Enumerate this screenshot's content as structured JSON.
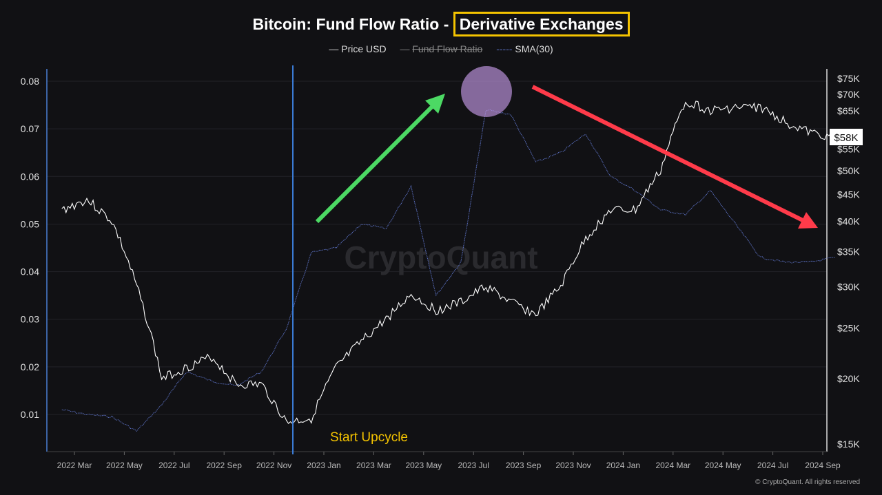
{
  "chart_data": {
    "type": "line",
    "title": "Bitcoin: Fund Flow Ratio -",
    "title_highlight": "Derivative Exchanges",
    "legend": [
      {
        "label": "Price USD",
        "style": "solid",
        "color": "#ffffff",
        "visible": true
      },
      {
        "label": "Fund Flow Ratio",
        "style": "solid",
        "color": "#888888",
        "visible": false
      },
      {
        "label": "SMA(30)",
        "style": "dotted",
        "color": "#5a6fc0",
        "visible": true
      }
    ],
    "legend_placement": "top-center",
    "x_ticks": [
      "2022 Mar",
      "2022 May",
      "2022 Jul",
      "2022 Sep",
      "2022 Nov",
      "2023 Jan",
      "2023 Mar",
      "2023 May",
      "2023 Jul",
      "2023 Sep",
      "2023 Nov",
      "2024 Jan",
      "2024 Mar",
      "2024 May",
      "2024 Jul",
      "2024 Sep"
    ],
    "y_left": {
      "ticks": [
        "0.01",
        "0.02",
        "0.03",
        "0.04",
        "0.05",
        "0.06",
        "0.07",
        "0.08"
      ],
      "values": [
        0.01,
        0.02,
        0.03,
        0.04,
        0.05,
        0.06,
        0.07,
        0.08
      ]
    },
    "y_right": {
      "scale": "log",
      "ticks": [
        "$15K",
        "$20K",
        "$25K",
        "$30K",
        "$35K",
        "$40K",
        "$45K",
        "$50K",
        "$55K",
        "$65K",
        "$70K",
        "$75K"
      ],
      "values": [
        15000,
        20000,
        25000,
        30000,
        35000,
        40000,
        45000,
        50000,
        55000,
        65000,
        70000,
        75000
      ],
      "current_label": "$58K"
    },
    "grid": true,
    "x": [
      "2022-02",
      "2022-03",
      "2022-04",
      "2022-05",
      "2022-06",
      "2022-07",
      "2022-08",
      "2022-09",
      "2022-10",
      "2022-11",
      "2022-12",
      "2023-01",
      "2023-02",
      "2023-03",
      "2023-04",
      "2023-05",
      "2023-06",
      "2023-07",
      "2023-08",
      "2023-09",
      "2023-10",
      "2023-11",
      "2023-12",
      "2024-01",
      "2024-02",
      "2024-03",
      "2024-04",
      "2024-05",
      "2024-06",
      "2024-07",
      "2024-08",
      "2024-09"
    ],
    "series": [
      {
        "name": "Price USD",
        "axis": "right",
        "values": [
          42000,
          44000,
          40000,
          30000,
          20000,
          21000,
          22000,
          19500,
          19500,
          16500,
          16800,
          21000,
          23500,
          26000,
          29000,
          27000,
          28000,
          30000,
          28000,
          26500,
          30000,
          37000,
          42000,
          42000,
          50000,
          68000,
          65000,
          66000,
          66000,
          62000,
          59000,
          58000
        ]
      },
      {
        "name": "SMA(30)",
        "axis": "left",
        "values": [
          0.011,
          0.01,
          0.0095,
          0.0065,
          0.012,
          0.019,
          0.017,
          0.016,
          0.019,
          0.028,
          0.044,
          0.045,
          0.05,
          0.049,
          0.058,
          0.035,
          0.042,
          0.074,
          0.073,
          0.063,
          0.065,
          0.069,
          0.06,
          0.057,
          0.053,
          0.052,
          0.057,
          0.05,
          0.043,
          0.042,
          0.042,
          0.043
        ]
      }
    ],
    "annotations": {
      "marker_label": "Start Upcycle",
      "marker_date": "2022-11",
      "up_arrow_color": "#4cd964",
      "down_arrow_color": "#ff3b4a",
      "peak_circle_color": "#b78fd6"
    },
    "watermark": "CryptoQuant"
  },
  "footer": "© CryptoQuant. All rights reserved"
}
